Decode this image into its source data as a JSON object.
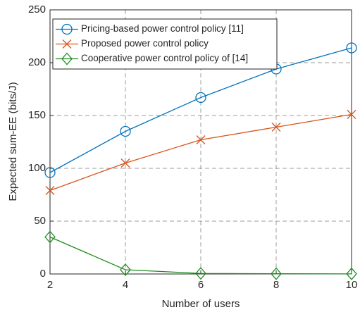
{
  "chart_data": {
    "type": "line",
    "xlabel": "Number of users",
    "ylabel": "Expected sum-EE (bits/J)",
    "x": [
      2,
      4,
      6,
      8,
      10
    ],
    "series": [
      {
        "name": "Pricing-based power control policy [11]",
        "color": "#0072bd",
        "marker": "circle",
        "values": [
          96,
          135,
          167,
          194,
          214
        ]
      },
      {
        "name": "Proposed power control policy",
        "color": "#d95319",
        "marker": "x",
        "values": [
          79,
          105,
          127,
          139,
          151
        ]
      },
      {
        "name": "Cooperative power control policy of [14]",
        "color": "#1e8c1e",
        "marker": "diamond",
        "values": [
          35,
          4,
          0.5,
          0.2,
          0.1
        ]
      }
    ],
    "xlim": [
      2,
      10
    ],
    "xticks": [
      2,
      4,
      6,
      8,
      10
    ],
    "ylim": [
      0,
      250
    ],
    "yticks": [
      0,
      50,
      100,
      150,
      200,
      250
    ],
    "grid": true,
    "legend": "upper left"
  }
}
